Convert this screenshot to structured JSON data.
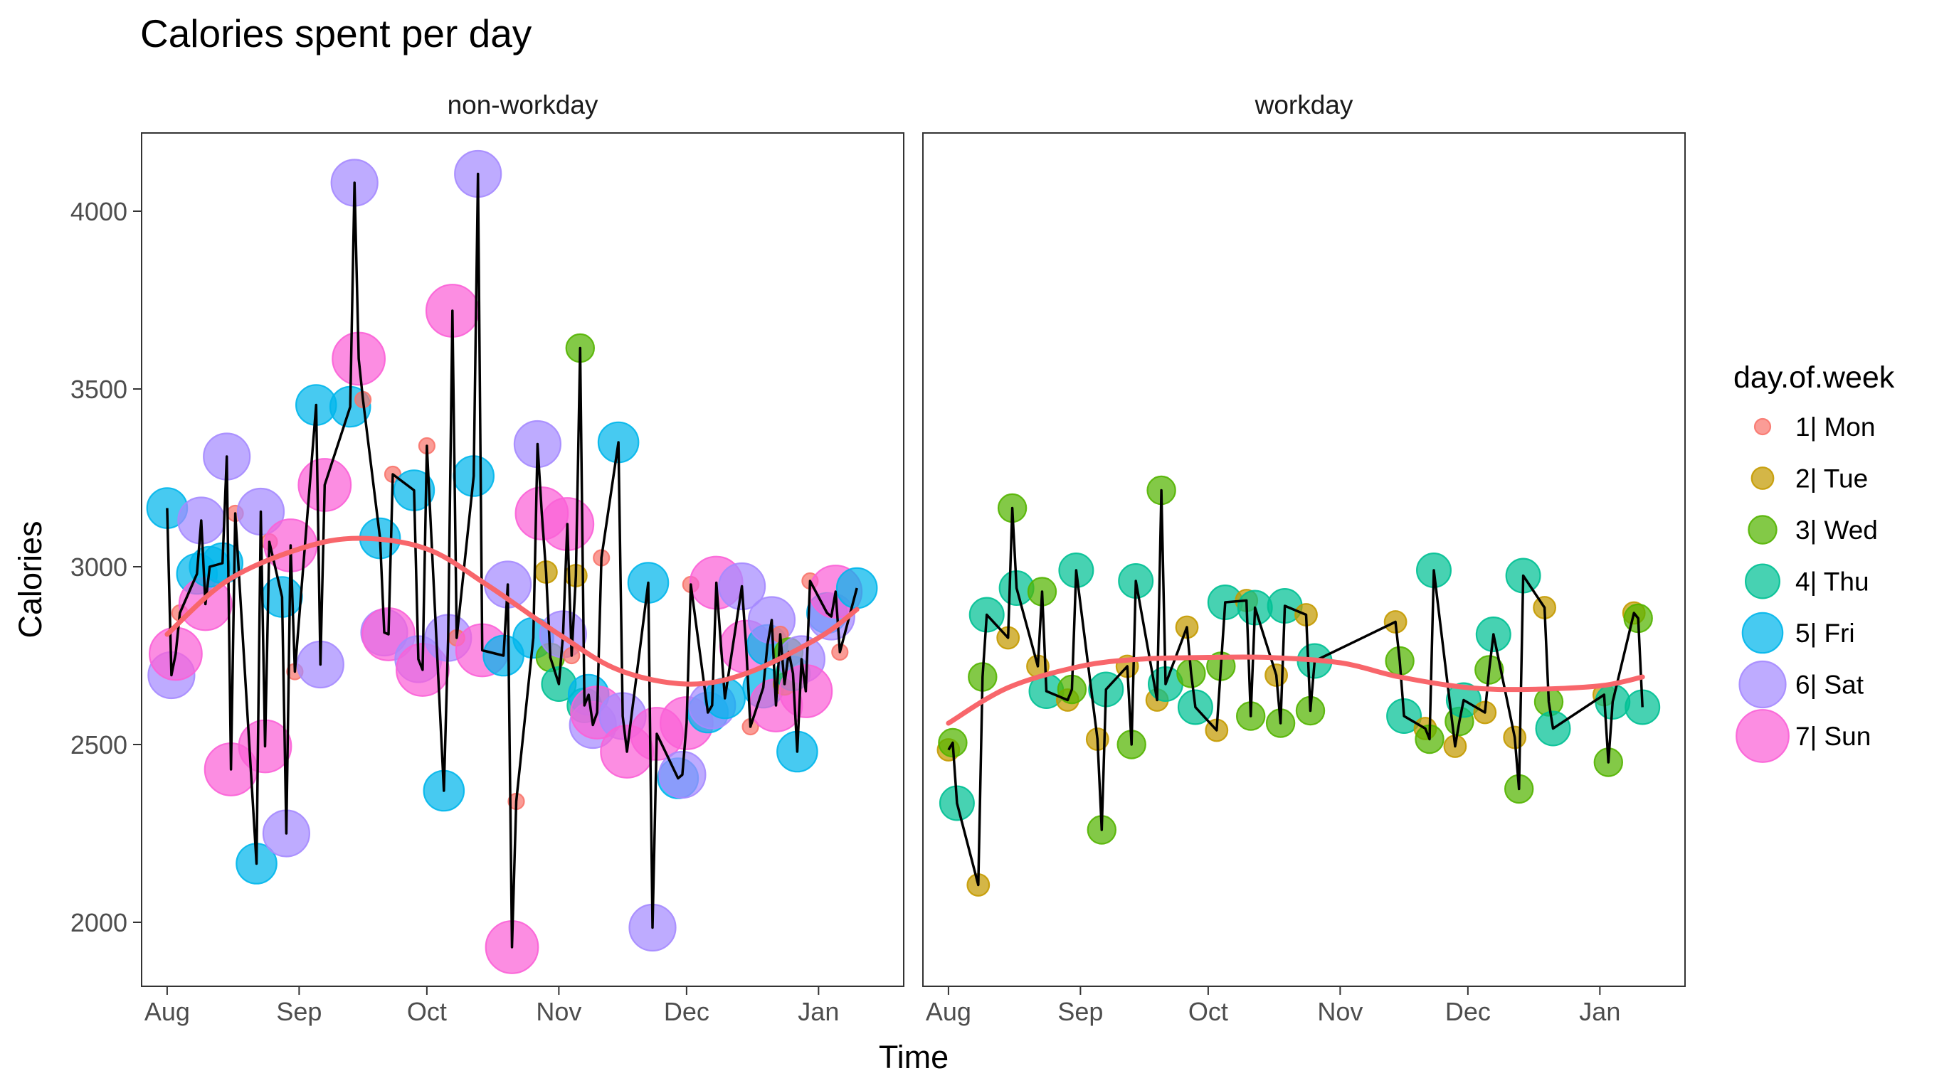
{
  "chart_data": {
    "type": "scatter",
    "title": "Calories spent per day",
    "xlabel": "Time",
    "ylabel": "Calories",
    "ylim": [
      1820,
      4220
    ],
    "y_ticks": [
      2000,
      2500,
      3000,
      3500,
      4000
    ],
    "x_ticks": [
      {
        "date": "2016-08-01",
        "label": "Aug"
      },
      {
        "date": "2016-09-01",
        "label": "Sep"
      },
      {
        "date": "2016-10-01",
        "label": "Oct"
      },
      {
        "date": "2016-11-01",
        "label": "Nov"
      },
      {
        "date": "2016-12-01",
        "label": "Dec"
      },
      {
        "date": "2017-01-01",
        "label": "Jan"
      }
    ],
    "xlim": [
      "2016-07-26",
      "2017-01-21"
    ],
    "grid": false,
    "legend": {
      "title": "day.of.week",
      "placement": "right",
      "entries": [
        {
          "key": "1",
          "label": "1| Mon",
          "color": "#F8766D"
        },
        {
          "key": "2",
          "label": "2| Tue",
          "color": "#C49A00"
        },
        {
          "key": "3",
          "label": "3| Wed",
          "color": "#53B400"
        },
        {
          "key": "4",
          "label": "4| Thu",
          "color": "#00C094"
        },
        {
          "key": "5",
          "label": "5| Fri",
          "color": "#00B6EB"
        },
        {
          "key": "6",
          "label": "6| Sat",
          "color": "#A58AFF"
        },
        {
          "key": "7",
          "label": "7| Sun",
          "color": "#FB61D7"
        }
      ]
    },
    "smooth_color": "#F8666B",
    "facets": [
      {
        "name": "non-workday",
        "points": [
          [
            "2016-08-01",
            3165,
            "5"
          ],
          [
            "2016-08-02",
            2695,
            "6"
          ],
          [
            "2016-08-03",
            2755,
            "7"
          ],
          [
            "2016-08-04",
            2870,
            "1"
          ],
          [
            "2016-08-08",
            2980,
            "5"
          ],
          [
            "2016-08-09",
            3130,
            "6"
          ],
          [
            "2016-08-10",
            2895,
            "7"
          ],
          [
            "2016-08-11",
            3000,
            "5"
          ],
          [
            "2016-08-14",
            3010,
            "5"
          ],
          [
            "2016-08-15",
            3310,
            "6"
          ],
          [
            "2016-08-16",
            2430,
            "7"
          ],
          [
            "2016-08-17",
            3150,
            "1"
          ],
          [
            "2016-08-22",
            2165,
            "5"
          ],
          [
            "2016-08-23",
            3155,
            "6"
          ],
          [
            "2016-08-24",
            2495,
            "7"
          ],
          [
            "2016-08-25",
            3070,
            "1"
          ],
          [
            "2016-08-28",
            2915,
            "5"
          ],
          [
            "2016-08-29",
            2250,
            "6"
          ],
          [
            "2016-08-30",
            3060,
            "7"
          ],
          [
            "2016-08-31",
            2705,
            "1"
          ],
          [
            "2016-09-05",
            3455,
            "5"
          ],
          [
            "2016-09-06",
            2725,
            "6"
          ],
          [
            "2016-09-07",
            3230,
            "7"
          ],
          [
            "2016-09-13",
            3450,
            "5"
          ],
          [
            "2016-09-14",
            4080,
            "6"
          ],
          [
            "2016-09-15",
            3585,
            "7"
          ],
          [
            "2016-09-16",
            3470,
            "1"
          ],
          [
            "2016-09-20",
            3080,
            "5"
          ],
          [
            "2016-09-21",
            2815,
            "6"
          ],
          [
            "2016-09-22",
            2810,
            "7"
          ],
          [
            "2016-09-23",
            3260,
            "1"
          ],
          [
            "2016-09-28",
            3215,
            "5"
          ],
          [
            "2016-09-29",
            2740,
            "6"
          ],
          [
            "2016-09-30",
            2710,
            "7"
          ],
          [
            "2016-10-01",
            3340,
            "1"
          ],
          [
            "2016-10-05",
            2370,
            "5"
          ],
          [
            "2016-10-06",
            2800,
            "6"
          ],
          [
            "2016-10-07",
            3720,
            "7"
          ],
          [
            "2016-10-08",
            2800,
            "1"
          ],
          [
            "2016-10-12",
            3255,
            "5"
          ],
          [
            "2016-10-13",
            4105,
            "6"
          ],
          [
            "2016-10-14",
            2765,
            "7"
          ],
          [
            "2016-10-19",
            2750,
            "5"
          ],
          [
            "2016-10-20",
            2950,
            "6"
          ],
          [
            "2016-10-21",
            1930,
            "7"
          ],
          [
            "2016-10-22",
            2340,
            "1"
          ],
          [
            "2016-10-26",
            2800,
            "5"
          ],
          [
            "2016-10-27",
            3345,
            "6"
          ],
          [
            "2016-10-28",
            3150,
            "7"
          ],
          [
            "2016-10-29",
            2985,
            "2"
          ],
          [
            "2016-10-30",
            2745,
            "3"
          ],
          [
            "2016-11-01",
            2670,
            "4"
          ],
          [
            "2016-11-02",
            2810,
            "6"
          ],
          [
            "2016-11-03",
            3120,
            "7"
          ],
          [
            "2016-11-04",
            2750,
            "1"
          ],
          [
            "2016-11-05",
            2975,
            "2"
          ],
          [
            "2016-11-06",
            3615,
            "3"
          ],
          [
            "2016-11-07",
            2610,
            "4"
          ],
          [
            "2016-11-08",
            2640,
            "5"
          ],
          [
            "2016-11-09",
            2555,
            "6"
          ],
          [
            "2016-11-10",
            2590,
            "7"
          ],
          [
            "2016-11-11",
            3025,
            "1"
          ],
          [
            "2016-11-15",
            3350,
            "5"
          ],
          [
            "2016-11-16",
            2580,
            "6"
          ],
          [
            "2016-11-17",
            2480,
            "7"
          ],
          [
            "2016-11-22",
            2955,
            "5"
          ],
          [
            "2016-11-23",
            1985,
            "6"
          ],
          [
            "2016-11-24",
            2530,
            "7"
          ],
          [
            "2016-11-29",
            2405,
            "5"
          ],
          [
            "2016-11-30",
            2415,
            "6"
          ],
          [
            "2016-12-01",
            2560,
            "7"
          ],
          [
            "2016-12-02",
            2950,
            "1"
          ],
          [
            "2016-12-06",
            2590,
            "5"
          ],
          [
            "2016-12-07",
            2610,
            "6"
          ],
          [
            "2016-12-08",
            2955,
            "7"
          ],
          [
            "2016-12-10",
            2630,
            "5"
          ],
          [
            "2016-12-14",
            2945,
            "6"
          ],
          [
            "2016-12-15",
            2775,
            "7"
          ],
          [
            "2016-12-16",
            2550,
            "1"
          ],
          [
            "2016-12-19",
            2660,
            "5"
          ],
          [
            "2016-12-20",
            2780,
            "5"
          ],
          [
            "2016-12-21",
            2850,
            "6"
          ],
          [
            "2016-12-22",
            2610,
            "7"
          ],
          [
            "2016-12-23",
            2810,
            "1"
          ],
          [
            "2016-12-24",
            2670,
            "2"
          ],
          [
            "2016-12-25",
            2760,
            "3"
          ],
          [
            "2016-12-26",
            2700,
            "4"
          ],
          [
            "2016-12-27",
            2480,
            "5"
          ],
          [
            "2016-12-28",
            2740,
            "6"
          ],
          [
            "2016-12-29",
            2650,
            "7"
          ],
          [
            "2016-12-30",
            2960,
            "1"
          ],
          [
            "2017-01-03",
            2870,
            "5"
          ],
          [
            "2017-01-04",
            2860,
            "6"
          ],
          [
            "2017-01-05",
            2930,
            "7"
          ],
          [
            "2017-01-06",
            2760,
            "1"
          ],
          [
            "2017-01-10",
            2940,
            "5"
          ]
        ],
        "smooth": [
          [
            "2016-08-01",
            2810
          ],
          [
            "2016-08-15",
            2960
          ],
          [
            "2016-09-01",
            3050
          ],
          [
            "2016-09-15",
            3080
          ],
          [
            "2016-10-01",
            3050
          ],
          [
            "2016-10-15",
            2950
          ],
          [
            "2016-11-01",
            2810
          ],
          [
            "2016-11-15",
            2710
          ],
          [
            "2016-12-01",
            2670
          ],
          [
            "2016-12-15",
            2700
          ],
          [
            "2017-01-01",
            2800
          ],
          [
            "2017-01-10",
            2880
          ]
        ]
      },
      {
        "name": "workday",
        "points": [
          [
            "2016-08-01",
            2485,
            "2"
          ],
          [
            "2016-08-02",
            2505,
            "3"
          ],
          [
            "2016-08-03",
            2335,
            "4"
          ],
          [
            "2016-08-08",
            2105,
            "2"
          ],
          [
            "2016-08-09",
            2690,
            "3"
          ],
          [
            "2016-08-10",
            2865,
            "4"
          ],
          [
            "2016-08-15",
            2800,
            "2"
          ],
          [
            "2016-08-16",
            3165,
            "3"
          ],
          [
            "2016-08-17",
            2940,
            "4"
          ],
          [
            "2016-08-22",
            2720,
            "2"
          ],
          [
            "2016-08-23",
            2930,
            "3"
          ],
          [
            "2016-08-24",
            2650,
            "4"
          ],
          [
            "2016-08-29",
            2625,
            "2"
          ],
          [
            "2016-08-30",
            2655,
            "3"
          ],
          [
            "2016-08-31",
            2990,
            "4"
          ],
          [
            "2016-09-05",
            2515,
            "2"
          ],
          [
            "2016-09-06",
            2260,
            "3"
          ],
          [
            "2016-09-07",
            2655,
            "4"
          ],
          [
            "2016-09-12",
            2720,
            "2"
          ],
          [
            "2016-09-13",
            2500,
            "3"
          ],
          [
            "2016-09-14",
            2960,
            "4"
          ],
          [
            "2016-09-19",
            2625,
            "2"
          ],
          [
            "2016-09-20",
            3215,
            "3"
          ],
          [
            "2016-09-21",
            2670,
            "4"
          ],
          [
            "2016-09-26",
            2830,
            "2"
          ],
          [
            "2016-09-27",
            2700,
            "3"
          ],
          [
            "2016-09-28",
            2605,
            "4"
          ],
          [
            "2016-10-03",
            2540,
            "2"
          ],
          [
            "2016-10-04",
            2720,
            "3"
          ],
          [
            "2016-10-05",
            2900,
            "4"
          ],
          [
            "2016-10-10",
            2905,
            "2"
          ],
          [
            "2016-10-11",
            2580,
            "3"
          ],
          [
            "2016-10-12",
            2885,
            "4"
          ],
          [
            "2016-10-17",
            2695,
            "2"
          ],
          [
            "2016-10-18",
            2560,
            "3"
          ],
          [
            "2016-10-19",
            2890,
            "4"
          ],
          [
            "2016-10-24",
            2865,
            "2"
          ],
          [
            "2016-10-25",
            2595,
            "3"
          ],
          [
            "2016-10-26",
            2735,
            "4"
          ],
          [
            "2016-11-14",
            2845,
            "2"
          ],
          [
            "2016-11-15",
            2735,
            "3"
          ],
          [
            "2016-11-16",
            2580,
            "4"
          ],
          [
            "2016-11-21",
            2545,
            "2"
          ],
          [
            "2016-11-22",
            2515,
            "3"
          ],
          [
            "2016-11-23",
            2990,
            "4"
          ],
          [
            "2016-11-28",
            2495,
            "2"
          ],
          [
            "2016-11-29",
            2565,
            "3"
          ],
          [
            "2016-11-30",
            2625,
            "4"
          ],
          [
            "2016-12-05",
            2590,
            "2"
          ],
          [
            "2016-12-06",
            2710,
            "3"
          ],
          [
            "2016-12-07",
            2810,
            "4"
          ],
          [
            "2016-12-12",
            2520,
            "2"
          ],
          [
            "2016-12-13",
            2375,
            "3"
          ],
          [
            "2016-12-14",
            2975,
            "4"
          ],
          [
            "2016-12-19",
            2885,
            "2"
          ],
          [
            "2016-12-20",
            2620,
            "3"
          ],
          [
            "2016-12-21",
            2545,
            "4"
          ],
          [
            "2017-01-02",
            2640,
            "2"
          ],
          [
            "2017-01-03",
            2450,
            "3"
          ],
          [
            "2017-01-04",
            2620,
            "4"
          ],
          [
            "2017-01-09",
            2870,
            "2"
          ],
          [
            "2017-01-10",
            2855,
            "3"
          ],
          [
            "2017-01-11",
            2605,
            "4"
          ]
        ],
        "smooth": [
          [
            "2016-08-01",
            2560
          ],
          [
            "2016-08-15",
            2660
          ],
          [
            "2016-09-01",
            2720
          ],
          [
            "2016-09-15",
            2740
          ],
          [
            "2016-10-01",
            2745
          ],
          [
            "2016-10-15",
            2745
          ],
          [
            "2016-11-01",
            2730
          ],
          [
            "2016-11-15",
            2690
          ],
          [
            "2016-12-01",
            2660
          ],
          [
            "2016-12-15",
            2655
          ],
          [
            "2017-01-01",
            2665
          ],
          [
            "2017-01-11",
            2690
          ]
        ]
      }
    ]
  }
}
